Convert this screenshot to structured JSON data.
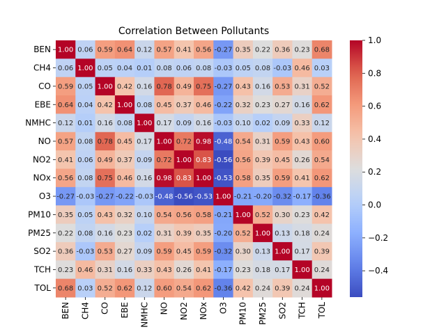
{
  "chart_data": {
    "type": "heatmap",
    "title": "Correlation Between Pollutants",
    "labels": [
      "BEN",
      "CH4",
      "CO",
      "EBE",
      "NMHC",
      "NO",
      "NO2",
      "NOx",
      "O3",
      "PM10",
      "PM25",
      "SO2",
      "TCH",
      "TOL"
    ],
    "values": [
      [
        1.0,
        0.06,
        0.59,
        0.64,
        0.12,
        0.57,
        0.41,
        0.56,
        -0.27,
        0.35,
        0.22,
        0.36,
        0.23,
        0.68
      ],
      [
        0.06,
        1.0,
        0.05,
        0.04,
        0.01,
        0.08,
        0.06,
        0.08,
        -0.03,
        0.05,
        0.08,
        -0.03,
        0.46,
        0.03
      ],
      [
        0.59,
        0.05,
        1.0,
        0.42,
        0.16,
        0.78,
        0.49,
        0.75,
        -0.27,
        0.43,
        0.16,
        0.53,
        0.31,
        0.52
      ],
      [
        0.64,
        0.04,
        0.42,
        1.0,
        0.08,
        0.45,
        0.37,
        0.46,
        -0.22,
        0.32,
        0.23,
        0.27,
        0.16,
        0.62
      ],
      [
        0.12,
        0.01,
        0.16,
        0.08,
        1.0,
        0.17,
        0.09,
        0.16,
        -0.03,
        0.1,
        0.02,
        0.09,
        0.33,
        0.12
      ],
      [
        0.57,
        0.08,
        0.78,
        0.45,
        0.17,
        1.0,
        0.72,
        0.98,
        -0.48,
        0.54,
        0.31,
        0.59,
        0.43,
        0.6
      ],
      [
        0.41,
        0.06,
        0.49,
        0.37,
        0.09,
        0.72,
        1.0,
        0.83,
        -0.56,
        0.56,
        0.39,
        0.45,
        0.26,
        0.54
      ],
      [
        0.56,
        0.08,
        0.75,
        0.46,
        0.16,
        0.98,
        0.83,
        1.0,
        -0.53,
        0.58,
        0.35,
        0.59,
        0.41,
        0.62
      ],
      [
        -0.27,
        -0.03,
        -0.27,
        -0.22,
        -0.03,
        -0.48,
        -0.56,
        -0.53,
        1.0,
        -0.21,
        -0.2,
        -0.32,
        -0.17,
        -0.36
      ],
      [
        0.35,
        0.05,
        0.43,
        0.32,
        0.1,
        0.54,
        0.56,
        0.58,
        -0.21,
        1.0,
        0.52,
        0.3,
        0.23,
        0.42
      ],
      [
        0.22,
        0.08,
        0.16,
        0.23,
        0.02,
        0.31,
        0.39,
        0.35,
        -0.2,
        0.52,
        1.0,
        0.13,
        0.18,
        0.24
      ],
      [
        0.36,
        -0.03,
        0.53,
        0.27,
        0.09,
        0.59,
        0.45,
        0.59,
        -0.32,
        0.3,
        0.13,
        1.0,
        0.17,
        0.39
      ],
      [
        0.23,
        0.46,
        0.31,
        0.16,
        0.33,
        0.43,
        0.26,
        0.41,
        -0.17,
        0.23,
        0.18,
        0.17,
        1.0,
        0.24
      ],
      [
        0.68,
        0.03,
        0.52,
        0.62,
        0.12,
        0.6,
        0.54,
        0.62,
        -0.36,
        0.42,
        0.24,
        0.39,
        0.24,
        1.0
      ]
    ],
    "vmin": -0.56,
    "vmax": 1.0,
    "colormap": "coolwarm",
    "colorbar_ticks": [
      "1.0",
      "0.8",
      "0.6",
      "0.4",
      "0.2",
      "0.0",
      "−0.2",
      "−0.4"
    ],
    "colorbar_tick_values": [
      1.0,
      0.8,
      0.6,
      0.4,
      0.2,
      0.0,
      -0.2,
      -0.4
    ],
    "annotation_format": "0.00"
  }
}
